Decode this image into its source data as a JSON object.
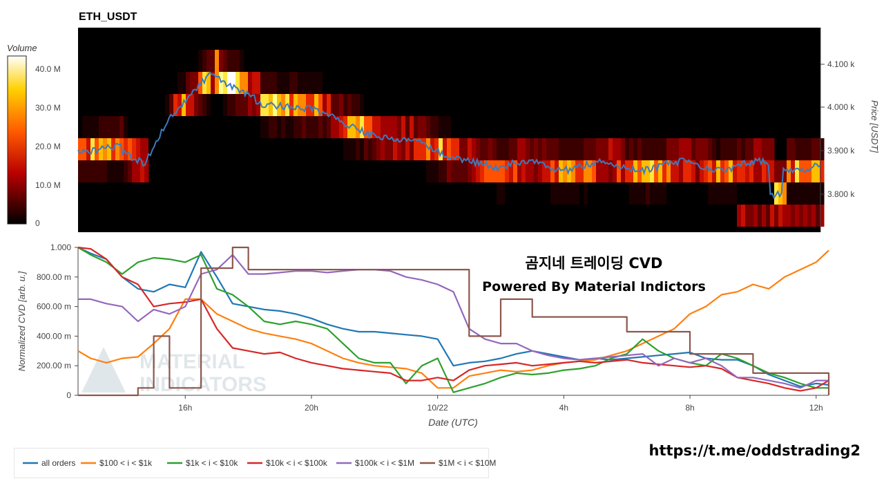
{
  "heatmap": {
    "title": "ETH_USDT",
    "colorbar_title": "Volume",
    "colorbar_ticks": [
      "0",
      "10.0 M",
      "20.0 M",
      "30.0 M",
      "40.0 M"
    ],
    "price_axis_label": "Price [USDT]",
    "price_ticks": [
      "3.800 k",
      "3.900 k",
      "4.000 k",
      "4.100 k"
    ],
    "colors": {
      "low": "#000000",
      "mid": "#cc0000",
      "high": "#ffff66",
      "max": "#ffffff",
      "price_line": "#3b7bbf"
    }
  },
  "overlay": {
    "line1": "곰지네 트레이딩 CVD",
    "line2": "Powered By Material Indictors",
    "watermark_line1": "MATERIAL",
    "watermark_line2": "INDICATORS",
    "link": "https://t.me/oddstrading2"
  },
  "chart_data": {
    "type": "line",
    "ylabel": "Normalized CVD [arb. u.]",
    "xlabel": "Date (UTC)",
    "x_ticks": [
      "16h",
      "20h",
      "10/22",
      "4h",
      "8h",
      "12h"
    ],
    "y_ticks": [
      "0",
      "200.00 m",
      "400.00 m",
      "600.00 m",
      "800.00 m",
      "1.000"
    ],
    "x": [
      12.6,
      13.0,
      13.5,
      14.0,
      14.5,
      15.0,
      15.5,
      16.0,
      16.5,
      17.0,
      17.5,
      18.0,
      18.5,
      19.0,
      19.5,
      20.0,
      20.5,
      21.0,
      21.5,
      22.0,
      22.5,
      23.0,
      23.5,
      24.0,
      24.5,
      25.0,
      25.5,
      26.0,
      26.5,
      27.0,
      27.5,
      28.0,
      28.5,
      29.0,
      29.5,
      30.0,
      30.5,
      31.0,
      31.5,
      32.0,
      32.5,
      33.0,
      33.5,
      34.0,
      34.5,
      35.0,
      35.5,
      36.0,
      36.4
    ],
    "ylim": [
      0,
      1
    ],
    "series": [
      {
        "name": "all orders",
        "color": "#1f77b4",
        "values": [
          1.0,
          0.96,
          0.92,
          0.8,
          0.72,
          0.7,
          0.75,
          0.73,
          0.97,
          0.8,
          0.62,
          0.6,
          0.58,
          0.57,
          0.55,
          0.52,
          0.48,
          0.45,
          0.43,
          0.43,
          0.42,
          0.41,
          0.4,
          0.38,
          0.2,
          0.22,
          0.23,
          0.25,
          0.28,
          0.3,
          0.28,
          0.26,
          0.24,
          0.25,
          0.24,
          0.25,
          0.26,
          0.27,
          0.28,
          0.29,
          0.25,
          0.24,
          0.24,
          0.2,
          0.14,
          0.1,
          0.06,
          0.08,
          0.07
        ]
      },
      {
        "name": "$100 < i < $1k",
        "color": "#ff7f0e",
        "values": [
          0.3,
          0.25,
          0.22,
          0.25,
          0.26,
          0.35,
          0.45,
          0.65,
          0.65,
          0.55,
          0.5,
          0.45,
          0.42,
          0.4,
          0.38,
          0.35,
          0.3,
          0.25,
          0.22,
          0.2,
          0.19,
          0.18,
          0.15,
          0.05,
          0.05,
          0.13,
          0.15,
          0.17,
          0.16,
          0.17,
          0.2,
          0.22,
          0.23,
          0.24,
          0.27,
          0.3,
          0.35,
          0.4,
          0.45,
          0.55,
          0.6,
          0.68,
          0.7,
          0.75,
          0.72,
          0.8,
          0.85,
          0.9,
          0.98
        ]
      },
      {
        "name": "$1k < i < $10k",
        "color": "#2ca02c",
        "values": [
          1.0,
          0.95,
          0.9,
          0.82,
          0.9,
          0.93,
          0.92,
          0.9,
          0.95,
          0.72,
          0.68,
          0.6,
          0.5,
          0.48,
          0.5,
          0.48,
          0.45,
          0.35,
          0.25,
          0.22,
          0.22,
          0.08,
          0.2,
          0.25,
          0.02,
          0.05,
          0.08,
          0.12,
          0.15,
          0.14,
          0.15,
          0.17,
          0.18,
          0.2,
          0.25,
          0.28,
          0.38,
          0.3,
          0.25,
          0.22,
          0.2,
          0.28,
          0.25,
          0.2,
          0.15,
          0.12,
          0.08,
          0.05,
          0.05
        ]
      },
      {
        "name": "$10k < i < $100k",
        "color": "#d62728",
        "values": [
          1.0,
          0.99,
          0.92,
          0.8,
          0.75,
          0.6,
          0.62,
          0.63,
          0.65,
          0.45,
          0.32,
          0.3,
          0.28,
          0.29,
          0.25,
          0.22,
          0.2,
          0.18,
          0.17,
          0.16,
          0.15,
          0.1,
          0.1,
          0.12,
          0.1,
          0.17,
          0.2,
          0.21,
          0.22,
          0.2,
          0.21,
          0.22,
          0.23,
          0.22,
          0.23,
          0.24,
          0.22,
          0.21,
          0.2,
          0.19,
          0.2,
          0.18,
          0.12,
          0.1,
          0.08,
          0.05,
          0.03,
          0.05,
          0.1
        ]
      },
      {
        "name": "$100k < i < $1M",
        "color": "#9467bd",
        "values": [
          0.65,
          0.65,
          0.62,
          0.6,
          0.5,
          0.58,
          0.55,
          0.6,
          0.82,
          0.85,
          0.95,
          0.82,
          0.82,
          0.83,
          0.84,
          0.84,
          0.83,
          0.84,
          0.85,
          0.85,
          0.84,
          0.8,
          0.78,
          0.75,
          0.7,
          0.45,
          0.38,
          0.35,
          0.35,
          0.3,
          0.27,
          0.25,
          0.24,
          0.25,
          0.26,
          0.27,
          0.28,
          0.2,
          0.25,
          0.22,
          0.25,
          0.2,
          0.12,
          0.12,
          0.1,
          0.08,
          0.05,
          0.1,
          0.1
        ]
      },
      {
        "name": "$1M < i < $10M",
        "color": "#8c564b",
        "step": true,
        "values": [
          0.0,
          0.0,
          0.0,
          0.0,
          0.05,
          0.4,
          0.05,
          0.05,
          0.86,
          0.86,
          1.0,
          0.85,
          0.85,
          0.85,
          0.85,
          0.85,
          0.85,
          0.85,
          0.85,
          0.85,
          0.85,
          0.85,
          0.85,
          0.85,
          0.85,
          0.4,
          0.4,
          0.65,
          0.65,
          0.53,
          0.53,
          0.53,
          0.53,
          0.53,
          0.53,
          0.43,
          0.43,
          0.43,
          0.43,
          0.28,
          0.28,
          0.28,
          0.28,
          0.15,
          0.15,
          0.15,
          0.15,
          0.15,
          0.0
        ]
      }
    ]
  }
}
